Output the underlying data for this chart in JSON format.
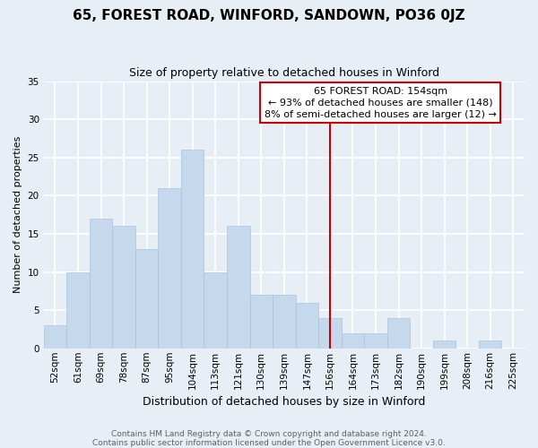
{
  "title": "65, FOREST ROAD, WINFORD, SANDOWN, PO36 0JZ",
  "subtitle": "Size of property relative to detached houses in Winford",
  "xlabel": "Distribution of detached houses by size in Winford",
  "ylabel": "Number of detached properties",
  "bar_labels": [
    "52sqm",
    "61sqm",
    "69sqm",
    "78sqm",
    "87sqm",
    "95sqm",
    "104sqm",
    "113sqm",
    "121sqm",
    "130sqm",
    "139sqm",
    "147sqm",
    "156sqm",
    "164sqm",
    "173sqm",
    "182sqm",
    "190sqm",
    "199sqm",
    "208sqm",
    "216sqm",
    "225sqm"
  ],
  "bar_values": [
    3,
    10,
    17,
    16,
    13,
    21,
    26,
    10,
    16,
    7,
    7,
    6,
    4,
    2,
    2,
    4,
    0,
    1,
    0,
    1,
    0
  ],
  "bar_color": "#c6d9ec",
  "bar_edge_color": "#aac4dc",
  "vline_x_index": 12,
  "vline_color": "#cc0000",
  "annotation_title": "65 FOREST ROAD: 154sqm",
  "annotation_line1": "← 93% of detached houses are smaller (148)",
  "annotation_line2": "8% of semi-detached houses are larger (12) →",
  "annotation_box_color": "#ffffff",
  "annotation_box_edge": "#cc0000",
  "ylim": [
    0,
    35
  ],
  "yticks": [
    0,
    5,
    10,
    15,
    20,
    25,
    30,
    35
  ],
  "footer1": "Contains HM Land Registry data © Crown copyright and database right 2024.",
  "footer2": "Contains public sector information licensed under the Open Government Licence v3.0.",
  "bg_color": "#e8eef5",
  "grid_color": "#ffffff",
  "title_fontsize": 11,
  "subtitle_fontsize": 9,
  "ylabel_fontsize": 8,
  "xlabel_fontsize": 9,
  "tick_fontsize": 7.5,
  "footer_fontsize": 6.5,
  "footer_color": "#606060"
}
